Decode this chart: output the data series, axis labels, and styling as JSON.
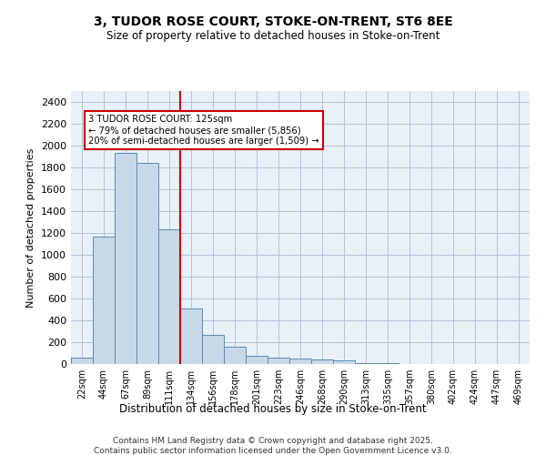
{
  "title_line1": "3, TUDOR ROSE COURT, STOKE-ON-TRENT, ST6 8EE",
  "title_line2": "Size of property relative to detached houses in Stoke-on-Trent",
  "xlabel": "Distribution of detached houses by size in Stoke-on-Trent",
  "ylabel": "Number of detached properties",
  "categories": [
    "22sqm",
    "44sqm",
    "67sqm",
    "89sqm",
    "111sqm",
    "134sqm",
    "156sqm",
    "178sqm",
    "201sqm",
    "223sqm",
    "246sqm",
    "268sqm",
    "290sqm",
    "313sqm",
    "335sqm",
    "357sqm",
    "380sqm",
    "402sqm",
    "424sqm",
    "447sqm",
    "469sqm"
  ],
  "values": [
    60,
    1170,
    1930,
    1840,
    1230,
    510,
    265,
    160,
    75,
    55,
    50,
    45,
    30,
    10,
    5,
    3,
    2,
    1,
    1,
    0,
    0
  ],
  "bar_color": "#c8d8e8",
  "bar_edge_color": "#5a8ab0",
  "vline_x": 4.5,
  "vline_color": "#cc0000",
  "annotation_text": "3 TUDOR ROSE COURT: 125sqm\n← 79% of detached houses are smaller (5,856)\n20% of semi-detached houses are larger (1,509) →",
  "annotation_box_color": "#cc0000",
  "annotation_box_facecolor": "white",
  "ylim": [
    0,
    2500
  ],
  "yticks": [
    0,
    200,
    400,
    600,
    800,
    1000,
    1200,
    1400,
    1600,
    1800,
    2000,
    2200,
    2400
  ],
  "grid_color": "#b0c4d8",
  "background_color": "#e8f0f8",
  "footer_line1": "Contains HM Land Registry data © Crown copyright and database right 2025.",
  "footer_line2": "Contains public sector information licensed under the Open Government Licence v3.0."
}
